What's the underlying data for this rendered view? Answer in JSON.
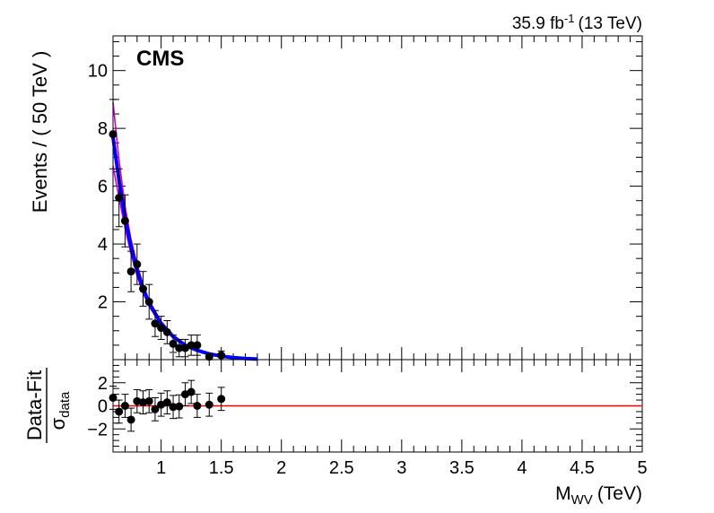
{
  "lumi": {
    "value": "35.9 fb",
    "sup": "-1",
    "energy": "(13 TeV)"
  },
  "cms_label": "CMS",
  "chart_data": [
    {
      "type": "scatter",
      "panel": "main",
      "ylabel": "Events / ( 50 TeV )",
      "xlim": [
        0.6,
        5.0
      ],
      "ylim": [
        0,
        11.2
      ],
      "yticks": [
        2,
        4,
        6,
        8,
        10
      ],
      "grid": false,
      "series": [
        {
          "style": "points-with-error-bars",
          "color": "#000000",
          "x": [
            0.6,
            0.65,
            0.7,
            0.75,
            0.8,
            0.85,
            0.9,
            0.95,
            1.0,
            1.05,
            1.1,
            1.15,
            1.2,
            1.25,
            1.3,
            1.4,
            1.5
          ],
          "y": [
            7.8,
            5.6,
            4.8,
            3.05,
            3.3,
            2.45,
            2.0,
            1.25,
            1.1,
            0.95,
            0.55,
            0.4,
            0.4,
            0.5,
            0.5,
            0.1,
            0.15
          ],
          "yerr": [
            1.2,
            1.0,
            0.9,
            0.7,
            0.7,
            0.6,
            0.6,
            0.45,
            0.4,
            0.4,
            0.3,
            0.3,
            0.3,
            0.35,
            0.35,
            0.1,
            0.15
          ]
        },
        {
          "style": "fit-curve",
          "color": "#0000ff",
          "x": [
            0.6,
            0.65,
            0.7,
            0.75,
            0.8,
            0.85,
            0.9,
            1.0,
            1.1,
            1.2,
            1.3,
            1.4,
            1.5,
            1.6,
            1.7,
            1.8
          ],
          "y": [
            7.7,
            6.2,
            4.9,
            3.9,
            3.1,
            2.45,
            1.95,
            1.25,
            0.8,
            0.5,
            0.32,
            0.2,
            0.12,
            0.07,
            0.04,
            0.02
          ]
        },
        {
          "style": "uncertainty-band",
          "color": "#cc00cc",
          "x": [
            0.6,
            0.65,
            0.7,
            0.75,
            0.8,
            0.85,
            0.9,
            1.0,
            1.1,
            1.2,
            1.3,
            1.4,
            1.5,
            1.6,
            1.7,
            1.8
          ],
          "upper": [
            8.9,
            6.9,
            5.3,
            4.15,
            3.3,
            2.6,
            2.05,
            1.32,
            0.85,
            0.54,
            0.35,
            0.22,
            0.14,
            0.08,
            0.05,
            0.025
          ],
          "lower": [
            6.7,
            5.6,
            4.55,
            3.65,
            2.9,
            2.3,
            1.85,
            1.18,
            0.75,
            0.46,
            0.29,
            0.18,
            0.1,
            0.06,
            0.03,
            0.015
          ]
        }
      ]
    },
    {
      "type": "scatter",
      "panel": "ratio",
      "xlabel": "M",
      "xlabel_sub": "WV",
      "xlabel_unit": "(TeV)",
      "ylabel": "Data-Fit",
      "ylabel_denom": "σ",
      "ylabel_denom_sub": "data",
      "xlim": [
        0.6,
        5.0
      ],
      "ylim": [
        -4,
        4
      ],
      "xticks": [
        1,
        1.5,
        2,
        2.5,
        3,
        3.5,
        4,
        4.5,
        5
      ],
      "xtick_labels": [
        "1",
        "1.5",
        "2",
        "2.5",
        "3",
        "3.5",
        "4",
        "4.5",
        "5"
      ],
      "yticks": [
        -2,
        0,
        2
      ],
      "ytick_labels": [
        "−2",
        "0",
        "2"
      ],
      "reference_line": {
        "y": 0,
        "color": "#ff0000"
      },
      "series": [
        {
          "style": "points-with-error-bars",
          "color": "#000000",
          "x": [
            0.6,
            0.65,
            0.7,
            0.75,
            0.8,
            0.85,
            0.9,
            0.95,
            1.0,
            1.05,
            1.1,
            1.15,
            1.2,
            1.25,
            1.3,
            1.4,
            1.5
          ],
          "y": [
            0.7,
            -0.5,
            0.0,
            -1.2,
            0.4,
            0.3,
            0.4,
            -0.3,
            0.1,
            0.3,
            -0.1,
            -0.05,
            1.0,
            1.2,
            0.0,
            0.1,
            0.6
          ],
          "yerr": [
            1,
            1,
            1,
            1,
            1,
            1,
            1,
            1,
            1,
            1,
            1,
            1,
            1,
            1,
            1,
            1,
            1
          ]
        }
      ]
    }
  ]
}
